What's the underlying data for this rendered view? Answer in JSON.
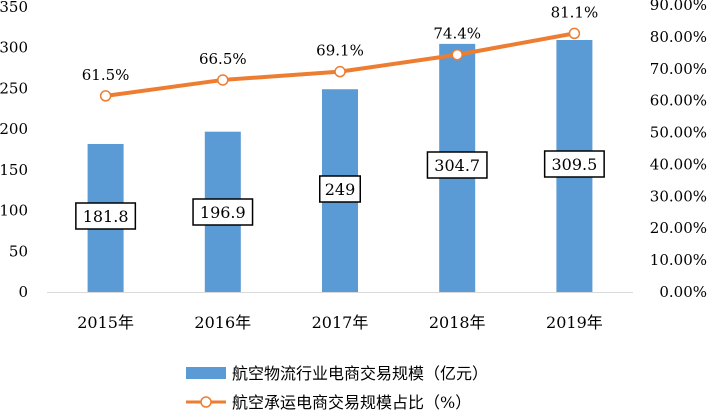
{
  "chart_data": {
    "type": "bar",
    "categories": [
      "2015年",
      "2016年",
      "2017年",
      "2018年",
      "2019年"
    ],
    "series": [
      {
        "name": "航空物流行业电商交易规模（亿元）",
        "type": "bar",
        "axis": "left",
        "values": [
          181.8,
          196.9,
          249,
          304.7,
          309.5
        ],
        "labels": [
          "181.8",
          "196.9",
          "249",
          "304.7",
          "309.5"
        ],
        "color": "#5B9BD5"
      },
      {
        "name": "航空承运电商交易规模占比（%）",
        "type": "line",
        "axis": "right",
        "values": [
          61.5,
          66.5,
          69.1,
          74.4,
          81.1
        ],
        "labels": [
          "61.5%",
          "66.5%",
          "69.1%",
          "74.4%",
          "81.1%"
        ],
        "color": "#ED7D31"
      }
    ],
    "y_left": {
      "min": 0,
      "max": 350,
      "step": 50,
      "ticks": [
        "0",
        "50",
        "100",
        "150",
        "200",
        "250",
        "300",
        "350"
      ]
    },
    "y_right": {
      "min": 0,
      "max": 90,
      "step": 10,
      "ticks": [
        "0.00%",
        "10.00%",
        "20.00%",
        "30.00%",
        "40.00%",
        "50.00%",
        "60.00%",
        "70.00%",
        "80.00%",
        "90.00%"
      ]
    },
    "grid": false,
    "legend_position": "bottom"
  }
}
